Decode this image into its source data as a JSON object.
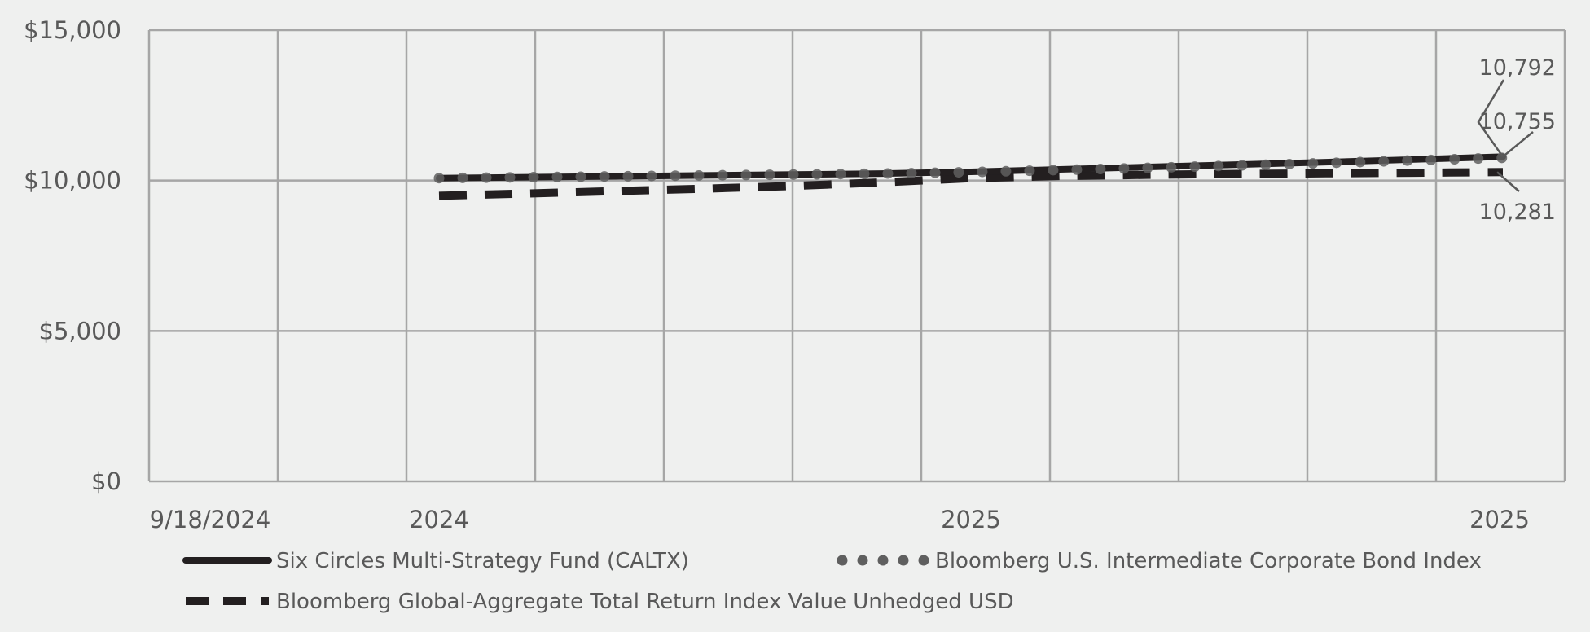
{
  "chart_data": {
    "type": "line",
    "ylim": [
      0,
      15000
    ],
    "y_ticks": [
      "$0",
      "$5,000",
      "$10,000",
      "$15,000"
    ],
    "y_tick_values": [
      0,
      5000,
      10000,
      15000
    ],
    "x_tick_labels": [
      "9/18/2024",
      "2024",
      "2025",
      "2025"
    ],
    "grid": true,
    "legend_placement": "bottom",
    "series": [
      {
        "name": "Six Circles Multi-Strategy Fund (CALTX)",
        "style": "solid",
        "color": "#231f20",
        "values": [
          10080,
          10110,
          10140,
          10170,
          10200,
          10230,
          10290,
          10370,
          10450,
          10530,
          10610,
          10700,
          10792
        ],
        "end_label": "10,792"
      },
      {
        "name": "Bloomberg U.S. Intermediate Corporate Bond Index",
        "style": "dotted",
        "color": "#5f5f5f",
        "values": [
          10080,
          10110,
          10140,
          10170,
          10200,
          10230,
          10280,
          10350,
          10420,
          10500,
          10580,
          10670,
          10755
        ],
        "end_label": "10,755"
      },
      {
        "name": "Bloomberg Global-Aggregate Total Return Index Value Unhedged USD",
        "style": "dashed",
        "color": "#231f20",
        "values": [
          9495,
          9570,
          9650,
          9730,
          9820,
          9940,
          10080,
          10150,
          10190,
          10220,
          10240,
          10260,
          10281
        ],
        "end_label": "10,281"
      }
    ]
  }
}
